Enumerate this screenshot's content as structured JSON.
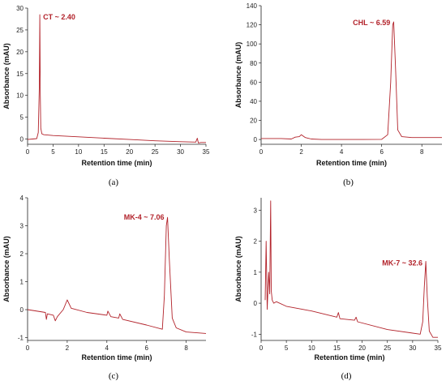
{
  "chart_data": [
    {
      "type": "line",
      "caption": "(a)",
      "xlabel": "Retention time (min)",
      "ylabel": "Absorbance (mAU)",
      "xlim": [
        0,
        35
      ],
      "ylim": [
        -1.2,
        30
      ],
      "xticks": [
        0,
        5,
        10,
        15,
        20,
        25,
        30,
        35
      ],
      "yticks": [
        0,
        5,
        10,
        15,
        20,
        25,
        30
      ],
      "color": "#b2222a",
      "annotation": {
        "text": "CT ~ 2.40",
        "x": 2.4,
        "y": 28
      },
      "series": [
        {
          "x": [
            0,
            1.0,
            1.8,
            2.1,
            2.3,
            2.4,
            2.5,
            2.6,
            2.8,
            3.2,
            5,
            10,
            15,
            20,
            25,
            30,
            33,
            33.3,
            33.5,
            34,
            35
          ],
          "y": [
            -0.1,
            0.0,
            0.1,
            1.5,
            12,
            28.5,
            10,
            2.5,
            1.2,
            1.0,
            0.8,
            0.5,
            0.2,
            -0.1,
            -0.4,
            -0.6,
            -0.7,
            0.2,
            -0.9,
            -0.8,
            -0.8
          ]
        }
      ]
    },
    {
      "type": "line",
      "caption": "(b)",
      "xlabel": "Retention time (min)",
      "ylabel": "Absorbance (mAU)",
      "xlim": [
        0,
        9
      ],
      "ylim": [
        -5,
        140
      ],
      "xticks": [
        0,
        2,
        4,
        6,
        8
      ],
      "yticks": [
        0,
        20,
        40,
        60,
        80,
        100,
        120,
        140
      ],
      "color": "#b2222a",
      "annotation": {
        "text": "CHL ~ 6.59",
        "x": 6.59,
        "y": 122
      },
      "series": [
        {
          "x": [
            0,
            1,
            1.5,
            1.7,
            1.9,
            2.0,
            2.2,
            2.5,
            3,
            4,
            5,
            6,
            6.3,
            6.45,
            6.55,
            6.6,
            6.7,
            6.8,
            7.0,
            7.5,
            8,
            9
          ],
          "y": [
            1,
            1,
            0.5,
            2.5,
            3,
            5,
            2,
            0.5,
            0,
            0,
            0,
            0.2,
            5,
            60,
            120,
            123,
            70,
            10,
            3,
            2,
            2,
            2
          ]
        }
      ]
    },
    {
      "type": "line",
      "caption": "(c)",
      "xlabel": "Retention time (min)",
      "ylabel": "Absorbance (mAU)",
      "xlim": [
        0,
        9
      ],
      "ylim": [
        -1.1,
        4
      ],
      "xticks": [
        0,
        2,
        4,
        6,
        8
      ],
      "yticks": [
        -1,
        0,
        1,
        2,
        3,
        4
      ],
      "color": "#b2222a",
      "annotation": {
        "text": "MK-4 ~ 7.06",
        "x": 7.06,
        "y": 3.3
      },
      "series": [
        {
          "x": [
            0,
            0.9,
            0.95,
            1.0,
            1.3,
            1.4,
            1.5,
            1.8,
            2.0,
            2.2,
            3,
            4.0,
            4.05,
            4.2,
            4.6,
            4.65,
            4.8,
            6,
            6.8,
            6.9,
            7.0,
            7.06,
            7.15,
            7.3,
            7.5,
            8,
            9
          ],
          "y": [
            0,
            -0.1,
            -0.35,
            -0.15,
            -0.2,
            -0.4,
            -0.25,
            0,
            0.35,
            0.05,
            -0.1,
            -0.2,
            -0.05,
            -0.25,
            -0.3,
            -0.15,
            -0.35,
            -0.55,
            -0.7,
            0.5,
            3.0,
            3.3,
            1.8,
            -0.3,
            -0.65,
            -0.8,
            -0.85
          ]
        }
      ]
    },
    {
      "type": "line",
      "caption": "(d)",
      "xlabel": "Retention time (min)",
      "ylabel": "Absorbance (mAU)",
      "xlim": [
        0,
        35
      ],
      "ylim": [
        -1.2,
        3.4
      ],
      "xticks": [
        0,
        5,
        10,
        15,
        20,
        25,
        30,
        35
      ],
      "yticks": [
        -1,
        0,
        1,
        2,
        3
      ],
      "color": "#b2222a",
      "annotation": {
        "text": "MK-7 ~ 32.6",
        "x": 32.6,
        "y": 1.3
      },
      "series": [
        {
          "x": [
            0.8,
            1.0,
            1.2,
            1.5,
            1.7,
            1.9,
            2.0,
            2.2,
            2.5,
            3,
            5,
            10,
            15,
            15.3,
            15.6,
            18.5,
            18.8,
            19.1,
            25,
            31.5,
            32.0,
            32.3,
            32.6,
            32.9,
            33.3,
            34,
            35
          ],
          "y": [
            0.1,
            2.0,
            -0.2,
            1.0,
            0.3,
            3.3,
            0.4,
            0.1,
            0.0,
            0.05,
            -0.1,
            -0.25,
            -0.45,
            -0.3,
            -0.5,
            -0.55,
            -0.45,
            -0.6,
            -0.85,
            -1.0,
            -0.6,
            0.5,
            1.35,
            0.2,
            -0.9,
            -1.1,
            -1.1
          ]
        }
      ]
    }
  ]
}
